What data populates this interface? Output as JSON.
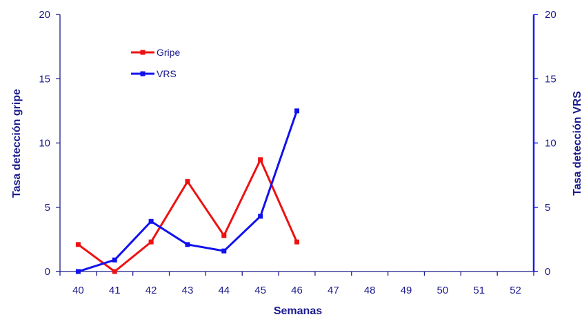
{
  "chart_data": {
    "type": "line",
    "title": "",
    "xlabel": "Semanas",
    "ylabel_left": "Tasa detección gripe",
    "ylabel_right": "Tasa detección VRS",
    "categories": [
      "40",
      "41",
      "42",
      "43",
      "44",
      "45",
      "46",
      "47",
      "48",
      "49",
      "50",
      "51",
      "52"
    ],
    "y_ticks": [
      "0",
      "5",
      "10",
      "15",
      "20"
    ],
    "ylim_left": [
      0,
      20
    ],
    "ylim_right": [
      0,
      20
    ],
    "legend_position": "top-left",
    "grid": false,
    "series": [
      {
        "name": "Gripe",
        "axis": "left",
        "color": "#ee1111",
        "values": [
          2.1,
          0.0,
          2.3,
          7.0,
          2.8,
          8.7,
          2.3,
          null,
          null,
          null,
          null,
          null,
          null
        ]
      },
      {
        "name": "VRS",
        "axis": "right",
        "color": "#1111ee",
        "values": [
          0.0,
          0.9,
          3.9,
          2.1,
          1.6,
          4.3,
          12.5,
          null,
          null,
          null,
          null,
          null,
          null
        ]
      }
    ],
    "axis_color": "#1a1a8c",
    "right_axis_color": "#1a1aee"
  }
}
